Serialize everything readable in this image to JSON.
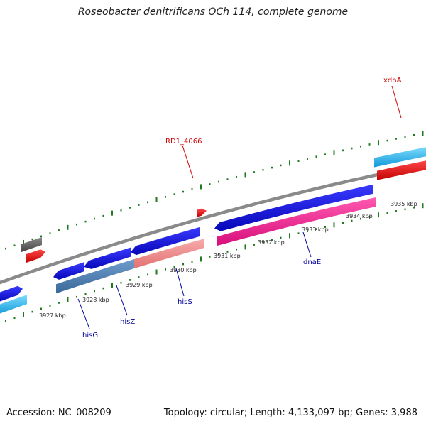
{
  "title": "Roseobacter denitrificans OCh 114, complete genome",
  "footer": {
    "accession": "Accession: NC_008209",
    "summary": "Topology: circular; Length: 4,133,097 bp; Genes: 3,988"
  },
  "scale_labels": [
    "3927 kbp",
    "3928 kbp",
    "3929 kbp",
    "3930 kbp",
    "3931 kbp",
    "3932 kbp",
    "3933 kbp",
    "3934 kbp",
    "3935 kbp"
  ],
  "gene_labels": {
    "top": [
      "RD1_4066",
      "xdhA"
    ],
    "bottom": [
      "hisG",
      "hisZ",
      "hisS",
      "dnaE"
    ]
  },
  "colors": {
    "backbone": "#8a8a8a",
    "tick": "#1e7a1e",
    "cds_forward": "#1010e0",
    "cds_cyan": "#1fb6f0",
    "red_feature": "#f01010",
    "gray_feature": "#666666",
    "his_operon": "#4a7fb5",
    "salmon": "#f08c8c",
    "magenta": "#ee1890",
    "label_red": "#cc0000",
    "label_blue": "#000099"
  }
}
